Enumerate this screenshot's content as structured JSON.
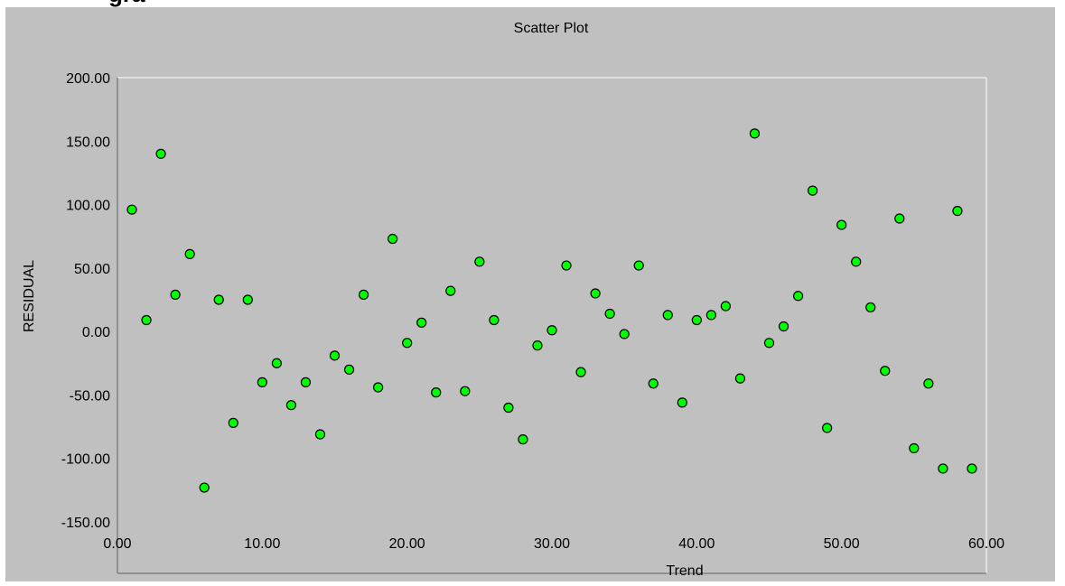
{
  "page": {
    "top_caption": "gra"
  },
  "chart_data": {
    "type": "scatter",
    "title": "Scatter Plot",
    "xlabel": "Trend",
    "ylabel": "RESIDUAL",
    "xlim": [
      0,
      60
    ],
    "ylim": [
      -150,
      200
    ],
    "xticks": [
      "0.00",
      "10.00",
      "20.00",
      "30.00",
      "40.00",
      "50.00",
      "60.00"
    ],
    "yticks": [
      "200.00",
      "150.00",
      "100.00",
      "50.00",
      "0.00",
      "-50.00",
      "-100.00",
      "-150.00"
    ],
    "grid": false,
    "legend": "none",
    "marker_color": "#00ff00",
    "marker_edge": "#000000",
    "background": "#c0c0c0",
    "x": [
      1,
      2,
      3,
      4,
      5,
      6,
      7,
      8,
      9,
      10,
      11,
      12,
      13,
      14,
      15,
      16,
      17,
      18,
      19,
      20,
      21,
      22,
      23,
      24,
      25,
      26,
      27,
      28,
      29,
      30,
      31,
      32,
      33,
      34,
      35,
      36,
      37,
      38,
      39,
      40,
      41,
      42,
      43,
      44,
      45,
      46,
      47,
      48,
      49,
      50,
      51,
      52,
      53,
      54,
      55,
      56,
      57,
      58,
      59
    ],
    "y": [
      96,
      9,
      140,
      29,
      61,
      -123,
      25,
      -72,
      25,
      -40,
      -25,
      -58,
      -40,
      -81,
      -19,
      -30,
      29,
      -44,
      73,
      -9,
      7,
      -48,
      32,
      -47,
      55,
      9,
      -60,
      -85,
      -11,
      1,
      52,
      -32,
      30,
      14,
      -2,
      52,
      -41,
      13,
      -56,
      9,
      13,
      20,
      -37,
      156,
      -9,
      4,
      28,
      111,
      -76,
      84,
      55,
      19,
      -31,
      89,
      -92,
      -41,
      -108,
      95,
      -108
    ]
  }
}
